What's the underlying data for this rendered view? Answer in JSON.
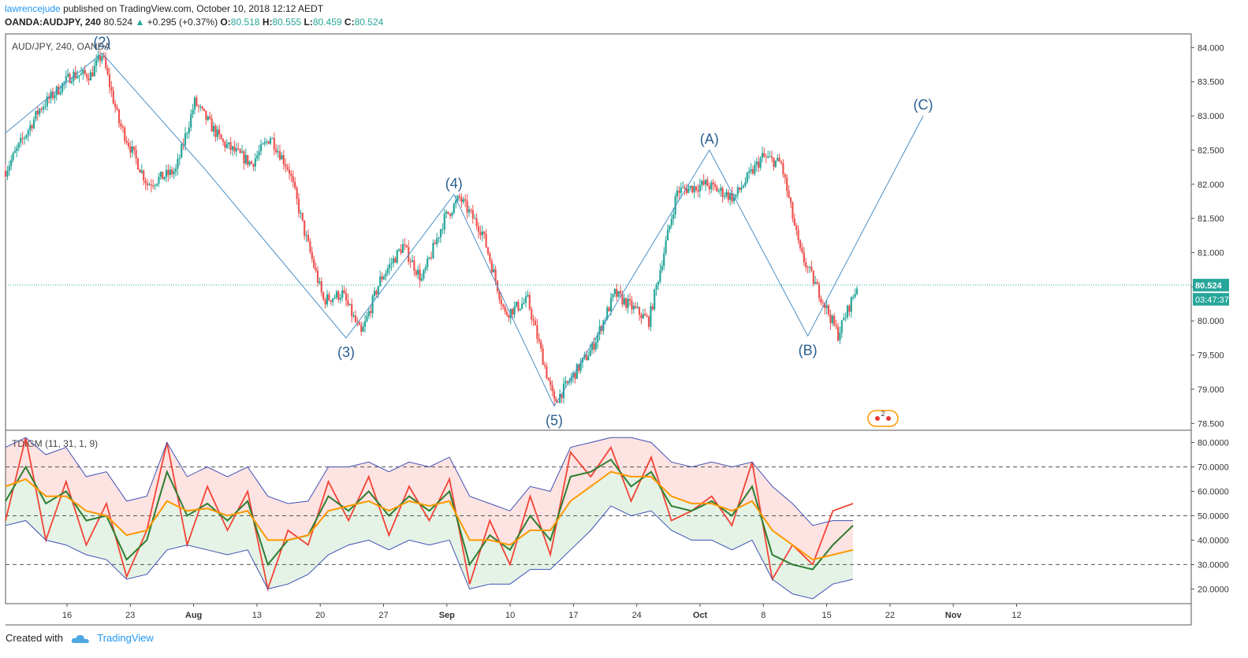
{
  "header": {
    "author": "lawrencejude",
    "published_text": "published on TradingView.com, October 10, 2018 12:12 AEDT",
    "symbol": "OANDA:AUDJPY, 240",
    "last": "80.524",
    "change": "+0.295 (+0.37%)",
    "o_label": "O:",
    "o_value": "80.518",
    "h_label": "H:",
    "h_value": "80.555",
    "l_label": "L:",
    "l_value": "80.459",
    "c_label": "C:",
    "c_value": "80.524"
  },
  "footer": {
    "created_with": "Created with",
    "brand": "TradingView"
  },
  "colors": {
    "up": "#26a69a",
    "down": "#ef5350",
    "wave": "#4a90c8",
    "price_tag": "#26a69a",
    "axis_text": "#333333"
  },
  "chart_data": [
    {
      "type": "candlestick",
      "title": "AUD/JPY, 240, OANDA",
      "ylim": [
        78.4,
        84.2
      ],
      "y_ticks": [
        "84.000",
        "83.500",
        "83.000",
        "82.500",
        "82.000",
        "81.500",
        "81.000",
        "80.500",
        "80.000",
        "79.500",
        "79.000",
        "78.500"
      ],
      "x_ticks": [
        "16",
        "23",
        "Aug",
        "13",
        "20",
        "27",
        "Sep",
        "10",
        "17",
        "24",
        "Oct",
        "8",
        "15",
        "22",
        "Nov",
        "12"
      ],
      "price_path": [
        [
          0,
          82.2
        ],
        [
          18,
          83.1
        ],
        [
          35,
          83.6
        ],
        [
          45,
          83.6
        ],
        [
          51,
          83.9
        ],
        [
          60,
          82.9
        ],
        [
          75,
          82.0
        ],
        [
          90,
          82.2
        ],
        [
          100,
          83.2
        ],
        [
          115,
          82.6
        ],
        [
          130,
          82.3
        ],
        [
          140,
          82.7
        ],
        [
          150,
          82.2
        ],
        [
          158,
          81.3
        ],
        [
          168,
          80.3
        ],
        [
          178,
          80.4
        ],
        [
          188,
          79.8
        ],
        [
          198,
          80.6
        ],
        [
          210,
          81.1
        ],
        [
          220,
          80.6
        ],
        [
          232,
          81.5
        ],
        [
          240,
          81.8
        ],
        [
          252,
          81.3
        ],
        [
          264,
          80.1
        ],
        [
          276,
          80.3
        ],
        [
          290,
          78.8
        ],
        [
          310,
          79.6
        ],
        [
          322,
          80.4
        ],
        [
          340,
          80.0
        ],
        [
          355,
          81.9
        ],
        [
          370,
          82.0
        ],
        [
          385,
          81.8
        ],
        [
          400,
          82.4
        ],
        [
          410,
          82.3
        ],
        [
          420,
          81.0
        ],
        [
          432,
          80.3
        ],
        [
          440,
          79.8
        ],
        [
          450,
          80.5
        ]
      ],
      "total_bars": 450,
      "last_price": 80.524,
      "price_label": "80.524",
      "countdown": "03:47:37",
      "wave_labels": [
        {
          "label": "(2)",
          "bar": 51,
          "value": 83.92
        },
        {
          "label": "(3)",
          "bar": 180,
          "value": 79.75
        },
        {
          "label": "(4)",
          "bar": 237,
          "value": 81.85
        },
        {
          "label": "(5)",
          "bar": 290,
          "value": 78.75
        },
        {
          "label": "(A)",
          "bar": 372,
          "value": 82.5
        },
        {
          "label": "(B)",
          "bar": 424,
          "value": 79.78
        },
        {
          "label": "(C)",
          "bar": 485,
          "value": 83.0
        }
      ],
      "wave_path": [
        [
          0,
          82.75
        ],
        [
          51,
          83.92
        ],
        [
          106,
          82.2
        ],
        [
          180,
          79.75
        ],
        [
          237,
          81.85
        ],
        [
          290,
          78.75
        ],
        [
          372,
          82.5
        ],
        [
          424,
          79.78
        ],
        [
          485,
          83.0
        ]
      ],
      "event_badge": "2"
    },
    {
      "type": "line",
      "title": "TDIGM (11, 31, 1, 9)",
      "ylim": [
        14,
        85
      ],
      "y_ticks": [
        "80.0000",
        "70.0000",
        "60.0000",
        "50.0000",
        "40.0000",
        "30.0000",
        "20.0000"
      ],
      "levels": [
        70,
        50,
        30
      ],
      "series": [
        {
          "role": "rsi",
          "color": "#f44336",
          "values": [
            48,
            82,
            40,
            64,
            38,
            55,
            25,
            44,
            80,
            38,
            62,
            44,
            60,
            20,
            44,
            38,
            64,
            48,
            66,
            42,
            62,
            48,
            65,
            22,
            48,
            30,
            58,
            34,
            76,
            66,
            78,
            56,
            74,
            48,
            52,
            58,
            46,
            72,
            24,
            38,
            30,
            52,
            55
          ]
        },
        {
          "role": "signal",
          "color": "#2e7d32",
          "values": [
            56,
            70,
            55,
            60,
            48,
            50,
            32,
            40,
            68,
            50,
            55,
            48,
            56,
            30,
            40,
            42,
            58,
            52,
            60,
            50,
            58,
            52,
            60,
            30,
            42,
            36,
            50,
            40,
            66,
            68,
            73,
            62,
            68,
            54,
            52,
            56,
            50,
            62,
            34,
            30,
            28,
            38,
            46
          ]
        },
        {
          "role": "base",
          "color": "#ff9800",
          "values": [
            62,
            65,
            58,
            58,
            52,
            50,
            42,
            44,
            56,
            52,
            53,
            50,
            52,
            40,
            40,
            42,
            52,
            54,
            56,
            52,
            56,
            54,
            56,
            40,
            40,
            38,
            44,
            44,
            56,
            62,
            68,
            66,
            66,
            58,
            55,
            55,
            52,
            56,
            44,
            38,
            32,
            34,
            36
          ]
        },
        {
          "role": "upper_band",
          "color": "#3f51b5",
          "values": [
            78,
            82,
            75,
            78,
            66,
            68,
            56,
            58,
            80,
            66,
            70,
            66,
            70,
            58,
            55,
            56,
            70,
            70,
            72,
            68,
            72,
            70,
            74,
            58,
            55,
            52,
            62,
            60,
            78,
            80,
            82,
            82,
            80,
            72,
            70,
            72,
            70,
            72,
            62,
            55,
            46,
            48,
            48
          ]
        },
        {
          "role": "lower_band",
          "color": "#3f51b5",
          "values": [
            46,
            48,
            40,
            38,
            34,
            32,
            24,
            26,
            36,
            38,
            36,
            34,
            36,
            20,
            22,
            26,
            34,
            38,
            40,
            36,
            40,
            38,
            40,
            20,
            22,
            22,
            28,
            28,
            36,
            44,
            54,
            50,
            52,
            44,
            40,
            40,
            36,
            40,
            24,
            18,
            16,
            22,
            24
          ]
        }
      ]
    }
  ]
}
